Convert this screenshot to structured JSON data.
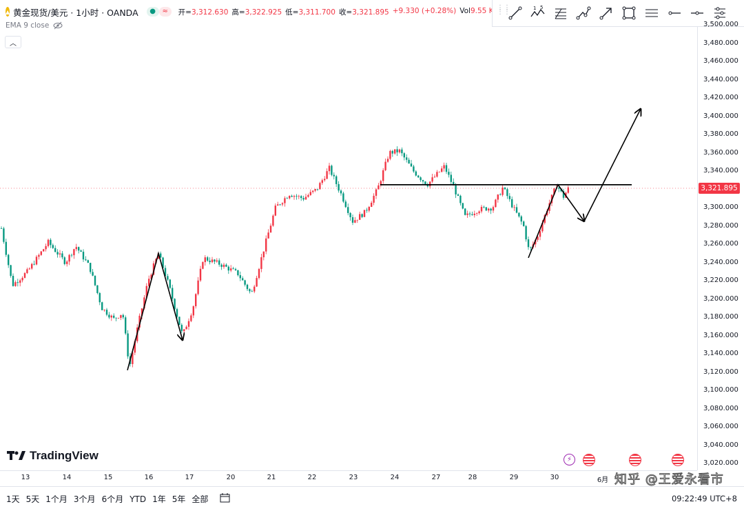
{
  "header": {
    "symbol": "黄金现货/美元 · 1小时 · OANDA",
    "status_icons": [
      "market-open-dot-icon",
      "data-delay-icon"
    ],
    "ohlc": [
      {
        "label": "开=",
        "value": "3,312.630"
      },
      {
        "label": "高=",
        "value": "3,322.925"
      },
      {
        "label": "低=",
        "value": "3,311.700"
      },
      {
        "label": "收=",
        "value": "3,321.895"
      },
      {
        "label": "",
        "value": "+9.330 (+0.28%)"
      },
      {
        "label": "Vol",
        "value": "9.55 K"
      }
    ]
  },
  "indicator": {
    "label": "EMA 9 close"
  },
  "toolbar": {
    "tools": [
      "trend-line-icon",
      "elliott-wave-icon",
      "fib-retracement-icon",
      "path-icon",
      "arrow-icon",
      "rectangle-icon",
      "parallel-channel-icon",
      "horizontal-ray-icon",
      "horizontal-line-icon",
      "settings-lines-icon"
    ],
    "wave_labels": [
      "1",
      "5"
    ]
  },
  "price_axis": {
    "ticks": [
      "3,500.000",
      "3,480.000",
      "3,460.000",
      "3,440.000",
      "3,420.000",
      "3,400.000",
      "3,380.000",
      "3,360.000",
      "3,340.000",
      "3,320.000",
      "3,300.000",
      "3,280.000",
      "3,260.000",
      "3,240.000",
      "3,220.000",
      "3,200.000",
      "3,180.000",
      "3,160.000",
      "3,140.000",
      "3,120.000",
      "3,100.000",
      "3,080.000",
      "3,060.000",
      "3,040.000",
      "3,020.000"
    ],
    "current_price": "3,321.895"
  },
  "time_axis": {
    "ticks": [
      "13",
      "14",
      "15",
      "16",
      "17",
      "20",
      "21",
      "22",
      "23",
      "24",
      "27",
      "28",
      "29",
      "30",
      "6月"
    ]
  },
  "bottom_bar": {
    "ranges": [
      "1天",
      "5天",
      "1个月",
      "3个月",
      "6个月",
      "YTD",
      "1年",
      "5年",
      "全部"
    ],
    "clock": "09:22:49 UTC+8"
  },
  "branding": {
    "logo_text": "TradingView"
  },
  "watermark": "知乎 @王爱永看市",
  "colors": {
    "up": "#f23645",
    "down": "#089981",
    "accent": "#2962ff",
    "drawing": "#000000"
  },
  "chart_data": {
    "type": "candlestick",
    "instrument": "黄金现货/美元",
    "interval": "1小时",
    "ylim": [
      3010,
      3510
    ],
    "anchors": [
      {
        "x": 0,
        "p": 3285
      },
      {
        "x": 18,
        "p": 3215
      },
      {
        "x": 40,
        "p": 3230
      },
      {
        "x": 70,
        "p": 3262
      },
      {
        "x": 95,
        "p": 3240
      },
      {
        "x": 110,
        "p": 3258
      },
      {
        "x": 130,
        "p": 3235
      },
      {
        "x": 148,
        "p": 3190
      },
      {
        "x": 165,
        "p": 3178
      },
      {
        "x": 178,
        "p": 3185
      },
      {
        "x": 188,
        "p": 3125
      },
      {
        "x": 200,
        "p": 3170
      },
      {
        "x": 215,
        "p": 3220
      },
      {
        "x": 230,
        "p": 3250
      },
      {
        "x": 245,
        "p": 3215
      },
      {
        "x": 265,
        "p": 3160
      },
      {
        "x": 280,
        "p": 3190
      },
      {
        "x": 295,
        "p": 3245
      },
      {
        "x": 320,
        "p": 3238
      },
      {
        "x": 345,
        "p": 3228
      },
      {
        "x": 365,
        "p": 3205
      },
      {
        "x": 385,
        "p": 3260
      },
      {
        "x": 400,
        "p": 3300
      },
      {
        "x": 420,
        "p": 3315
      },
      {
        "x": 440,
        "p": 3310
      },
      {
        "x": 460,
        "p": 3320
      },
      {
        "x": 478,
        "p": 3343
      },
      {
        "x": 495,
        "p": 3315
      },
      {
        "x": 512,
        "p": 3285
      },
      {
        "x": 530,
        "p": 3295
      },
      {
        "x": 548,
        "p": 3320
      },
      {
        "x": 565,
        "p": 3360
      },
      {
        "x": 580,
        "p": 3362
      },
      {
        "x": 600,
        "p": 3340
      },
      {
        "x": 620,
        "p": 3325
      },
      {
        "x": 645,
        "p": 3345
      },
      {
        "x": 660,
        "p": 3320
      },
      {
        "x": 675,
        "p": 3290
      },
      {
        "x": 695,
        "p": 3298
      },
      {
        "x": 715,
        "p": 3300
      },
      {
        "x": 730,
        "p": 3322
      },
      {
        "x": 745,
        "p": 3300
      },
      {
        "x": 760,
        "p": 3280
      },
      {
        "x": 768,
        "p": 3252
      },
      {
        "x": 780,
        "p": 3268
      },
      {
        "x": 795,
        "p": 3300
      },
      {
        "x": 808,
        "p": 3325
      },
      {
        "x": 818,
        "p": 3312
      },
      {
        "x": 826,
        "p": 3322
      }
    ],
    "drawings": [
      {
        "type": "polyline-arrow",
        "points": [
          [
            185,
            3122
          ],
          [
            230,
            3250
          ],
          [
            265,
            3155
          ]
        ]
      },
      {
        "type": "polyline-arrow",
        "points": [
          [
            767,
            3245
          ],
          [
            810,
            3325
          ],
          [
            848,
            3285
          ]
        ]
      },
      {
        "type": "arrow",
        "points": [
          [
            848,
            3285
          ],
          [
            930,
            3408
          ]
        ]
      },
      {
        "type": "horizontal-line",
        "from": 552,
        "to": 917,
        "price": 3325
      }
    ]
  }
}
